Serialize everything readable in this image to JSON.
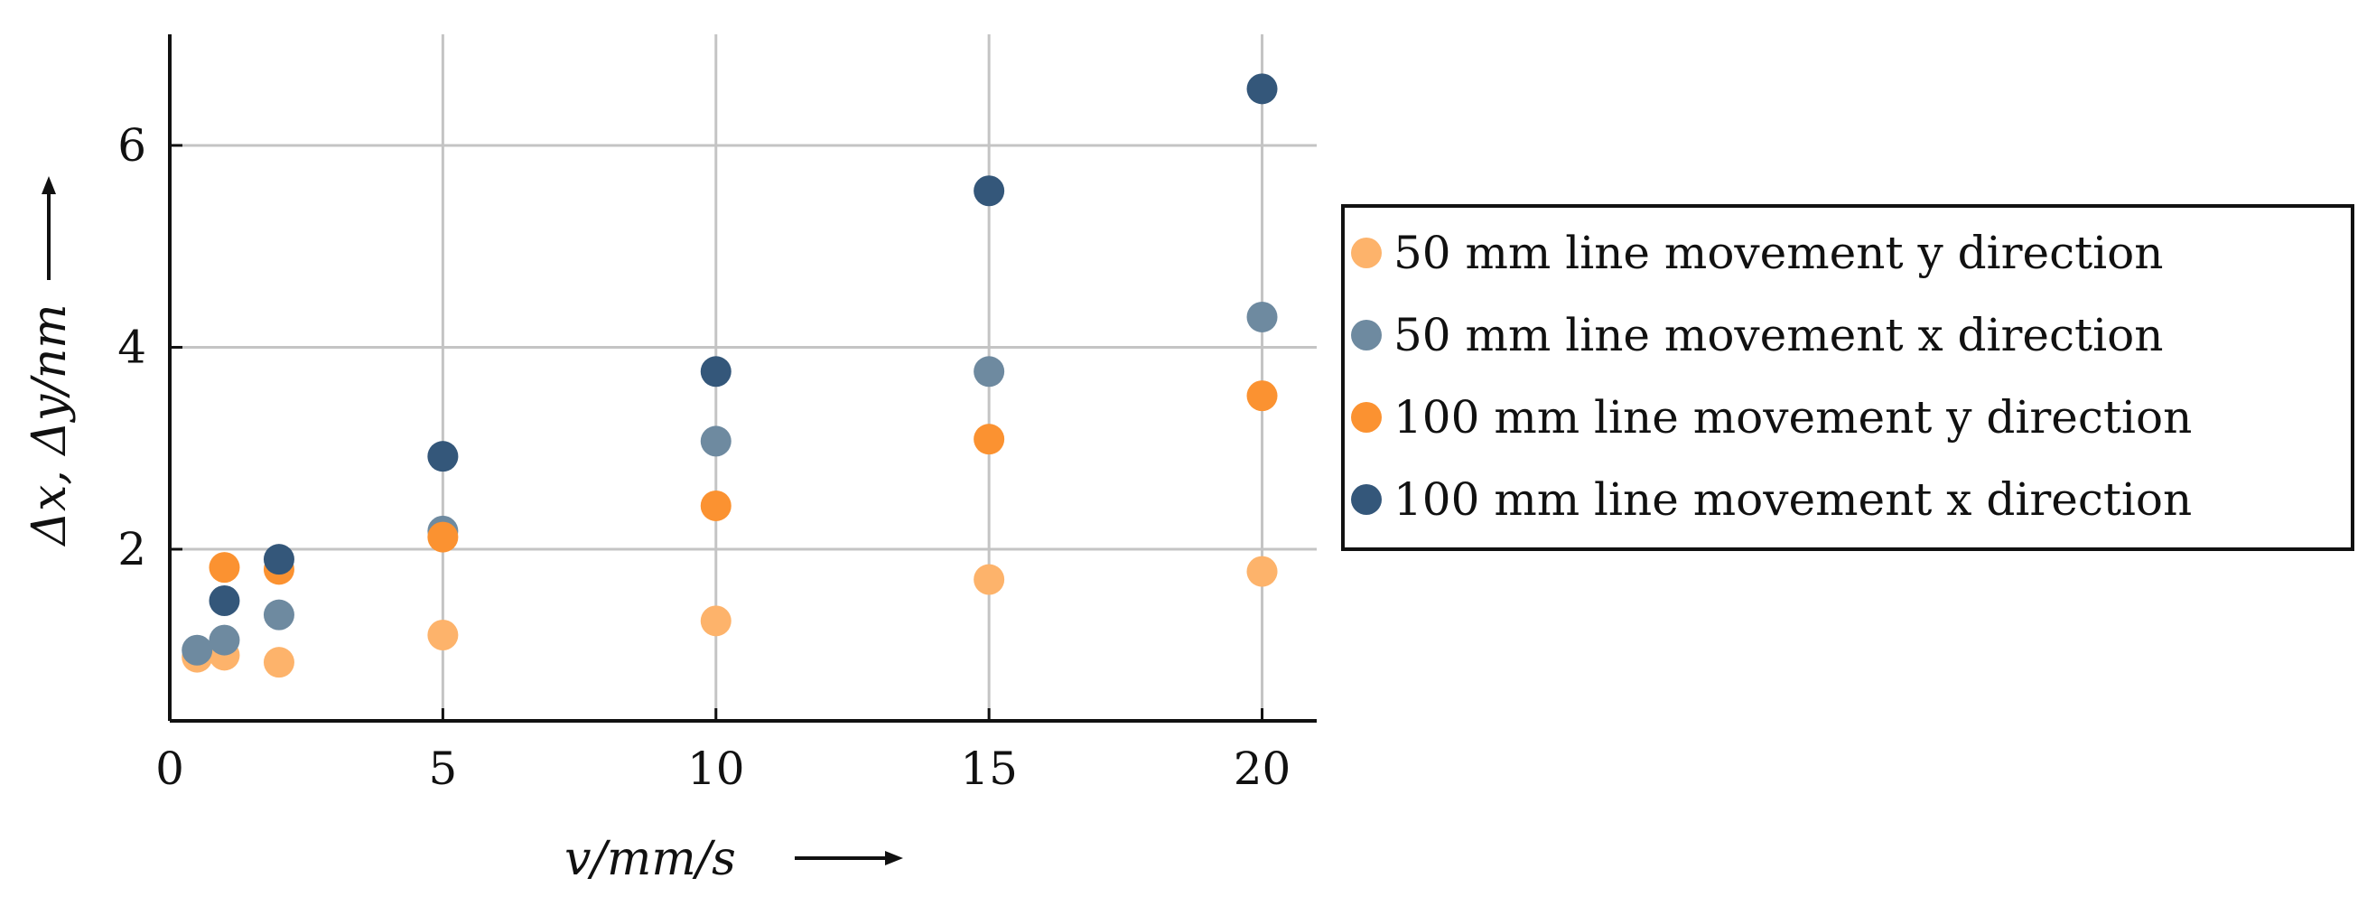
{
  "chart_data": {
    "type": "scatter",
    "title": "",
    "xlabel": "v/mm/s",
    "ylabel": "Δx, Δy/nm",
    "xlim": [
      0,
      21
    ],
    "ylim": [
      0.3,
      7.1
    ],
    "xticks": [
      0,
      5,
      10,
      15,
      20
    ],
    "xtick_labels": [
      "0",
      "5",
      "10",
      "15",
      "20"
    ],
    "yticks": [
      2,
      4,
      6
    ],
    "ytick_labels": [
      "2",
      "4",
      "6"
    ],
    "grid": true,
    "legend_position": "right",
    "series": [
      {
        "name": "50 mm line movement y direction",
        "color": "#fdb36b",
        "x": [
          0.5,
          1,
          2,
          5,
          10,
          15,
          20
        ],
        "y": [
          0.93,
          0.95,
          0.88,
          1.15,
          1.29,
          1.7,
          1.78
        ]
      },
      {
        "name": "50 mm line movement x direction",
        "color": "#6e8aa0",
        "x": [
          0.5,
          1,
          2,
          5,
          10,
          15,
          20
        ],
        "y": [
          1.0,
          1.1,
          1.35,
          2.18,
          3.07,
          3.76,
          4.3
        ]
      },
      {
        "name": "100 mm line movement y direction",
        "color": "#fb9231",
        "x": [
          1,
          2,
          5,
          10,
          15,
          20
        ],
        "y": [
          1.82,
          1.8,
          2.12,
          2.43,
          3.09,
          3.52
        ]
      },
      {
        "name": "100 mm line movement x direction",
        "color": "#34577a",
        "x": [
          1,
          2,
          5,
          10,
          15,
          20
        ],
        "y": [
          1.49,
          1.9,
          2.92,
          3.76,
          5.55,
          6.56
        ]
      }
    ]
  }
}
